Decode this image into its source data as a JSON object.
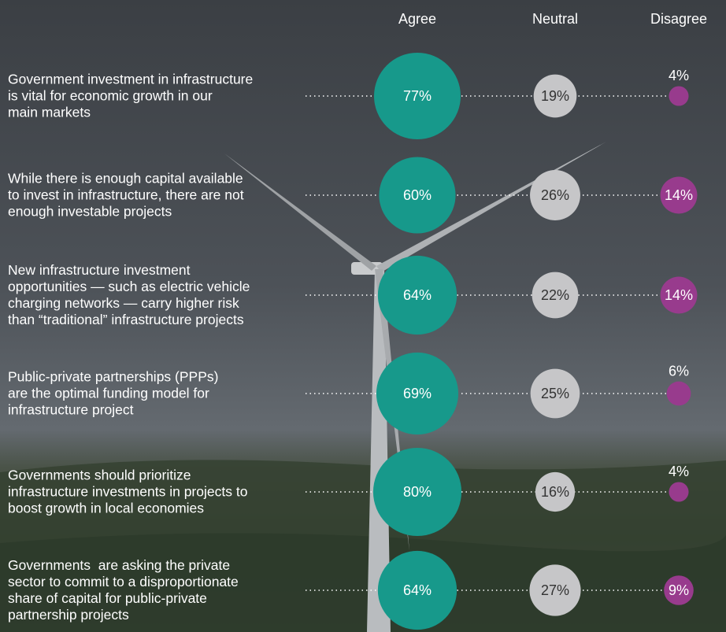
{
  "chart_data": {
    "type": "bubble",
    "categories": [
      "Government investment in infrastructure\nis vital for economic growth in our\nmain markets",
      "While there is enough capital available\nto invest in infrastructure, there are not\nenough investable projects",
      "New infrastructure investment\nopportunities — such as electric vehicle\ncharging networks — carry higher risk\nthan “traditional” infrastructure projects",
      "Public-private partnerships (PPPs)\nare the optimal funding model for\ninfrastructure project",
      "Governments should prioritize\ninfrastructure investments in projects to\nboost growth in local economies",
      "Governments  are asking the private\nsector to commit to a disproportionate\nshare of capital for public-private\npartnership projects"
    ],
    "series": [
      {
        "name": "Agree",
        "color": "#17998b",
        "values": [
          77,
          60,
          64,
          69,
          80,
          64
        ],
        "value_labels": [
          "77%",
          "60%",
          "64%",
          "69%",
          "80%",
          "64%"
        ]
      },
      {
        "name": "Neutral",
        "color": "#c6c6c8",
        "values": [
          19,
          26,
          22,
          25,
          16,
          27
        ],
        "value_labels": [
          "19%",
          "26%",
          "22%",
          "25%",
          "16%",
          "27%"
        ]
      },
      {
        "name": "Disagree",
        "color": "#983b8d",
        "values": [
          4,
          14,
          14,
          6,
          4,
          9
        ],
        "value_labels": [
          "4%",
          "14%",
          "14%",
          "6%",
          "4%",
          "9%"
        ]
      }
    ]
  }
}
